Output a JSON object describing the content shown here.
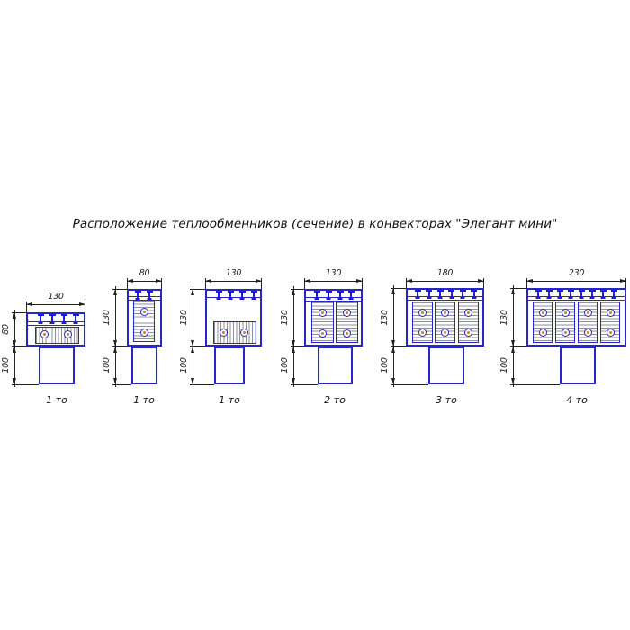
{
  "title": "Расположение теплообменников (сечение) в конвекторах \"Элегант мини\"",
  "colors": {
    "line": "#2626c9",
    "bracket": "#1a1ae0",
    "hatch": "#8f8fa0",
    "dimension": "#222222",
    "tube_center": "#c9803b",
    "text": "#111111"
  },
  "diagrams": [
    {
      "caption": "1 то",
      "top_dim": "130",
      "side_dim_upper": "80",
      "side_dim_lower": "100",
      "exchanger_count": 1,
      "orientation": "horizontal"
    },
    {
      "caption": "1 то",
      "top_dim": "80",
      "side_dim_upper": "130",
      "side_dim_lower": "100",
      "exchanger_count": 1,
      "orientation": "vertical"
    },
    {
      "caption": "1 то",
      "top_dim": "130",
      "side_dim_upper": "130",
      "side_dim_lower": "100",
      "exchanger_count": 1,
      "orientation": "horizontal"
    },
    {
      "caption": "2 то",
      "top_dim": "130",
      "side_dim_upper": "130",
      "side_dim_lower": "100",
      "exchanger_count": 2,
      "orientation": "vertical"
    },
    {
      "caption": "3 то",
      "top_dim": "180",
      "side_dim_upper": "130",
      "side_dim_lower": "100",
      "exchanger_count": 3,
      "orientation": "vertical"
    },
    {
      "caption": "4 то",
      "top_dim": "230",
      "side_dim_upper": "130",
      "side_dim_lower": "100",
      "exchanger_count": 4,
      "orientation": "vertical"
    }
  ]
}
